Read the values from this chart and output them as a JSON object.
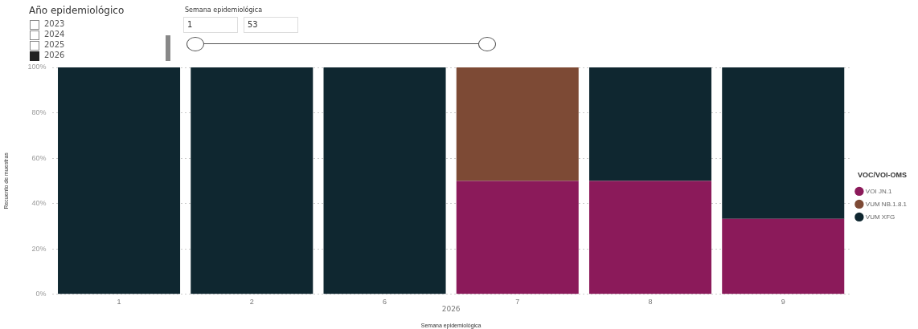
{
  "chart_data": {
    "type": "bar",
    "stacked": true,
    "xlabel": "Semana epidemiológica",
    "ylabel": "Recuento de muestras",
    "legend_title": "VOC/VOI-OMS",
    "legend": "right",
    "grid": "y",
    "categories": [
      "1",
      "2",
      "6",
      "7",
      "8",
      "9"
    ],
    "series": [
      {
        "name": "VOI JN.1",
        "color": "#8b1a5a",
        "values": [
          0,
          0,
          0,
          50,
          50,
          33.3
        ]
      },
      {
        "name": "VUM NB.1.8.1",
        "color": "#7d4a35",
        "values": [
          0,
          0,
          0,
          50,
          0,
          0
        ]
      },
      {
        "name": "VUM XFG",
        "color": "#0f2730",
        "values": [
          100,
          100,
          100,
          0,
          50,
          66.7
        ]
      }
    ],
    "ylim": [
      0,
      100
    ],
    "yticks": [
      {
        "value": 0,
        "label": "0%"
      },
      {
        "value": 20,
        "label": "20%"
      },
      {
        "value": 40,
        "label": "40%"
      },
      {
        "value": 60,
        "label": "60%"
      },
      {
        "value": 80,
        "label": "80%"
      },
      {
        "value": 100,
        "label": "100%"
      }
    ],
    "annotations": [
      "Año epidemiológico",
      "2023",
      "2024",
      "2025",
      "2026",
      "Semana epidemiológica",
      "1",
      "53",
      "2026"
    ]
  }
}
